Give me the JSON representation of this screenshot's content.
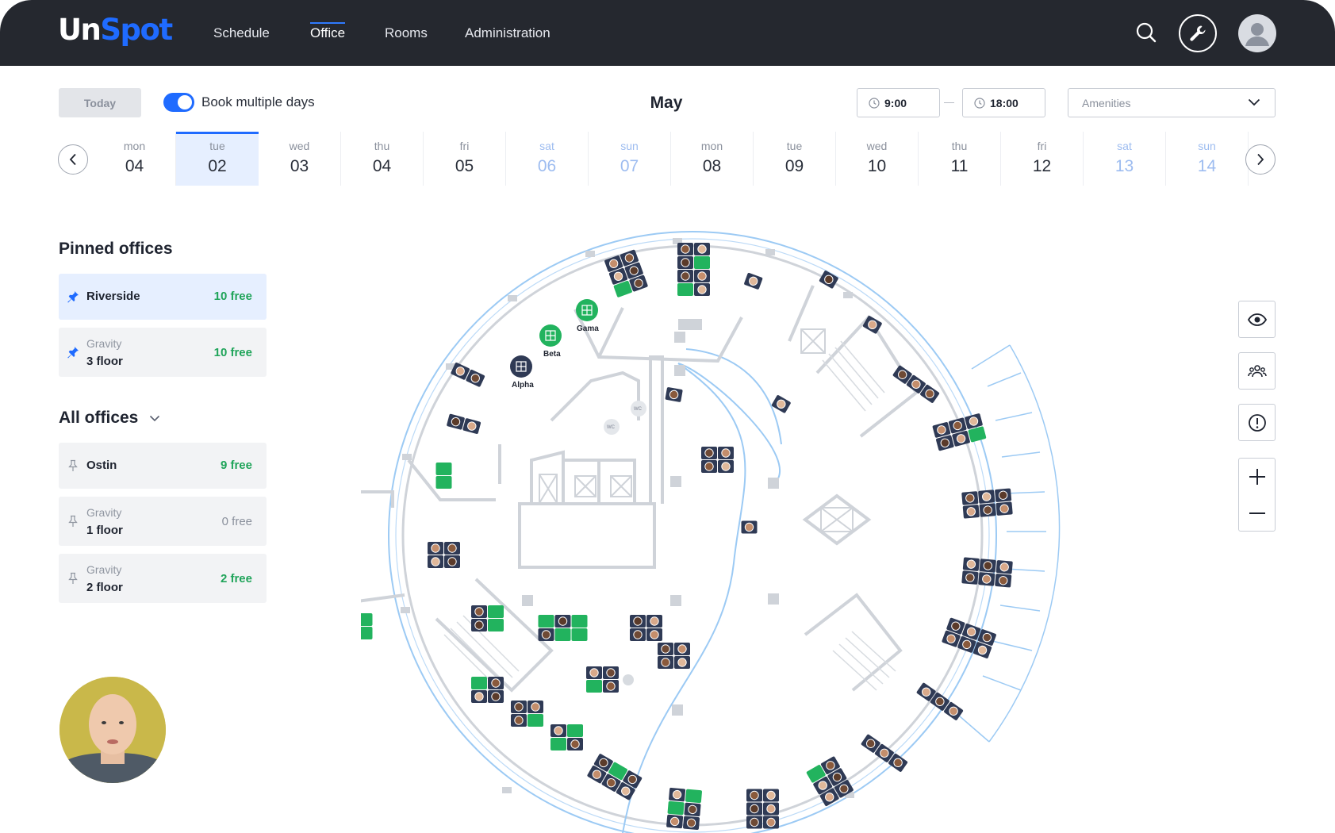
{
  "app": {
    "logo_part1": "Un",
    "logo_part2": "Spot"
  },
  "nav": {
    "items": [
      {
        "label": "Schedule"
      },
      {
        "label": "Office",
        "active": true
      },
      {
        "label": "Rooms"
      },
      {
        "label": "Administration"
      }
    ]
  },
  "header_icons": [
    "search-icon",
    "wrench-icon",
    "user-icon"
  ],
  "toolbar": {
    "today_label": "Today",
    "book_multiple_label": "Book multiple days",
    "book_multiple_on": true,
    "month": "May",
    "time_from": "9:00",
    "time_to": "18:00",
    "amenities_placeholder": "Amenities"
  },
  "days": [
    {
      "dow": "mon",
      "num": "04"
    },
    {
      "dow": "tue",
      "num": "02",
      "selected": true
    },
    {
      "dow": "wed",
      "num": "03"
    },
    {
      "dow": "thu",
      "num": "04"
    },
    {
      "dow": "fri",
      "num": "05"
    },
    {
      "dow": "sat",
      "num": "06",
      "weekend": true
    },
    {
      "dow": "sun",
      "num": "07",
      "weekend": true
    },
    {
      "dow": "mon",
      "num": "08"
    },
    {
      "dow": "tue",
      "num": "09"
    },
    {
      "dow": "wed",
      "num": "10"
    },
    {
      "dow": "thu",
      "num": "11"
    },
    {
      "dow": "fri",
      "num": "12"
    },
    {
      "dow": "sat",
      "num": "13",
      "weekend": true
    },
    {
      "dow": "sun",
      "num": "14",
      "weekend": true
    }
  ],
  "pinned": {
    "heading": "Pinned offices",
    "offices": [
      {
        "name": "Riverside",
        "free": "10 free",
        "active": true
      },
      {
        "sub": "Gravity",
        "name": "3 floor",
        "free": "10 free"
      }
    ]
  },
  "all": {
    "heading": "All offices",
    "offices": [
      {
        "name": "Ostin",
        "free": "9 free"
      },
      {
        "sub": "Gravity",
        "name": "1 floor",
        "free": "0 free"
      },
      {
        "sub": "Gravity",
        "name": "2 floor",
        "free": "2 free"
      }
    ]
  },
  "map": {
    "rooms": [
      {
        "label": "Alpha",
        "status": "occupied"
      },
      {
        "label": "Beta",
        "status": "free"
      },
      {
        "label": "Gama",
        "status": "free"
      }
    ],
    "wc_label": "WC"
  },
  "side_controls": [
    "eye-icon",
    "team-icon",
    "alert-icon",
    "zoom-in-icon",
    "zoom-out-icon"
  ],
  "colors": {
    "accent": "#1f6bff",
    "free_green": "#20a45a",
    "desk_navy": "#2f3a55",
    "desk_free": "#22b35e",
    "topbar": "#25282f"
  }
}
